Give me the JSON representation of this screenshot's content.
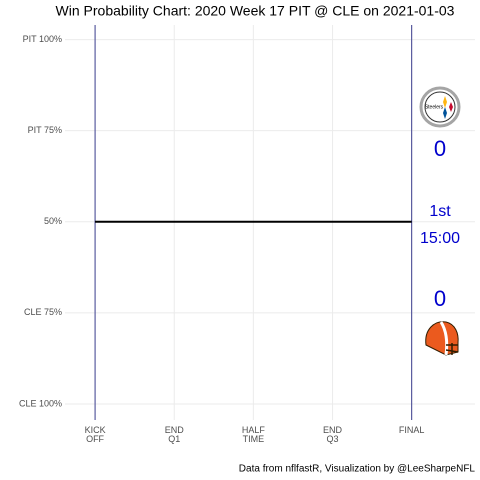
{
  "chart_data": {
    "type": "line",
    "title": "Win Probability Chart: 2020 Week 17 PIT @ CLE on 2021-01-03",
    "caption": "Data from nflfastR, Visualization by @LeeSharpeNFL",
    "x": [
      0,
      60
    ],
    "series": [
      {
        "color": "#000000",
        "values": [
          50,
          50
        ]
      }
    ],
    "xlim": [
      -5.7,
      72
    ],
    "ylim": [
      -4.4,
      104
    ],
    "xticks": [
      {
        "value": 0,
        "label": "KICK OFF"
      },
      {
        "value": 15,
        "label": "END Q1"
      },
      {
        "value": 30,
        "label": "HALF TIME"
      },
      {
        "value": 45,
        "label": "END Q3"
      },
      {
        "value": 60,
        "label": "FINAL"
      }
    ],
    "yticks": [
      {
        "value": 100,
        "label": "PIT 100%"
      },
      {
        "value": 75,
        "label": "PIT 75%"
      },
      {
        "value": 50,
        "label": "50%"
      },
      {
        "value": 25,
        "label": "CLE 75%"
      },
      {
        "value": 0,
        "label": "CLE 100%"
      }
    ],
    "grid": true,
    "period_line_color": "#3b3f8f",
    "score_color": "#0000cc",
    "away_score": 0,
    "home_score": 0,
    "quarter": "1st",
    "clock": "15:00"
  }
}
